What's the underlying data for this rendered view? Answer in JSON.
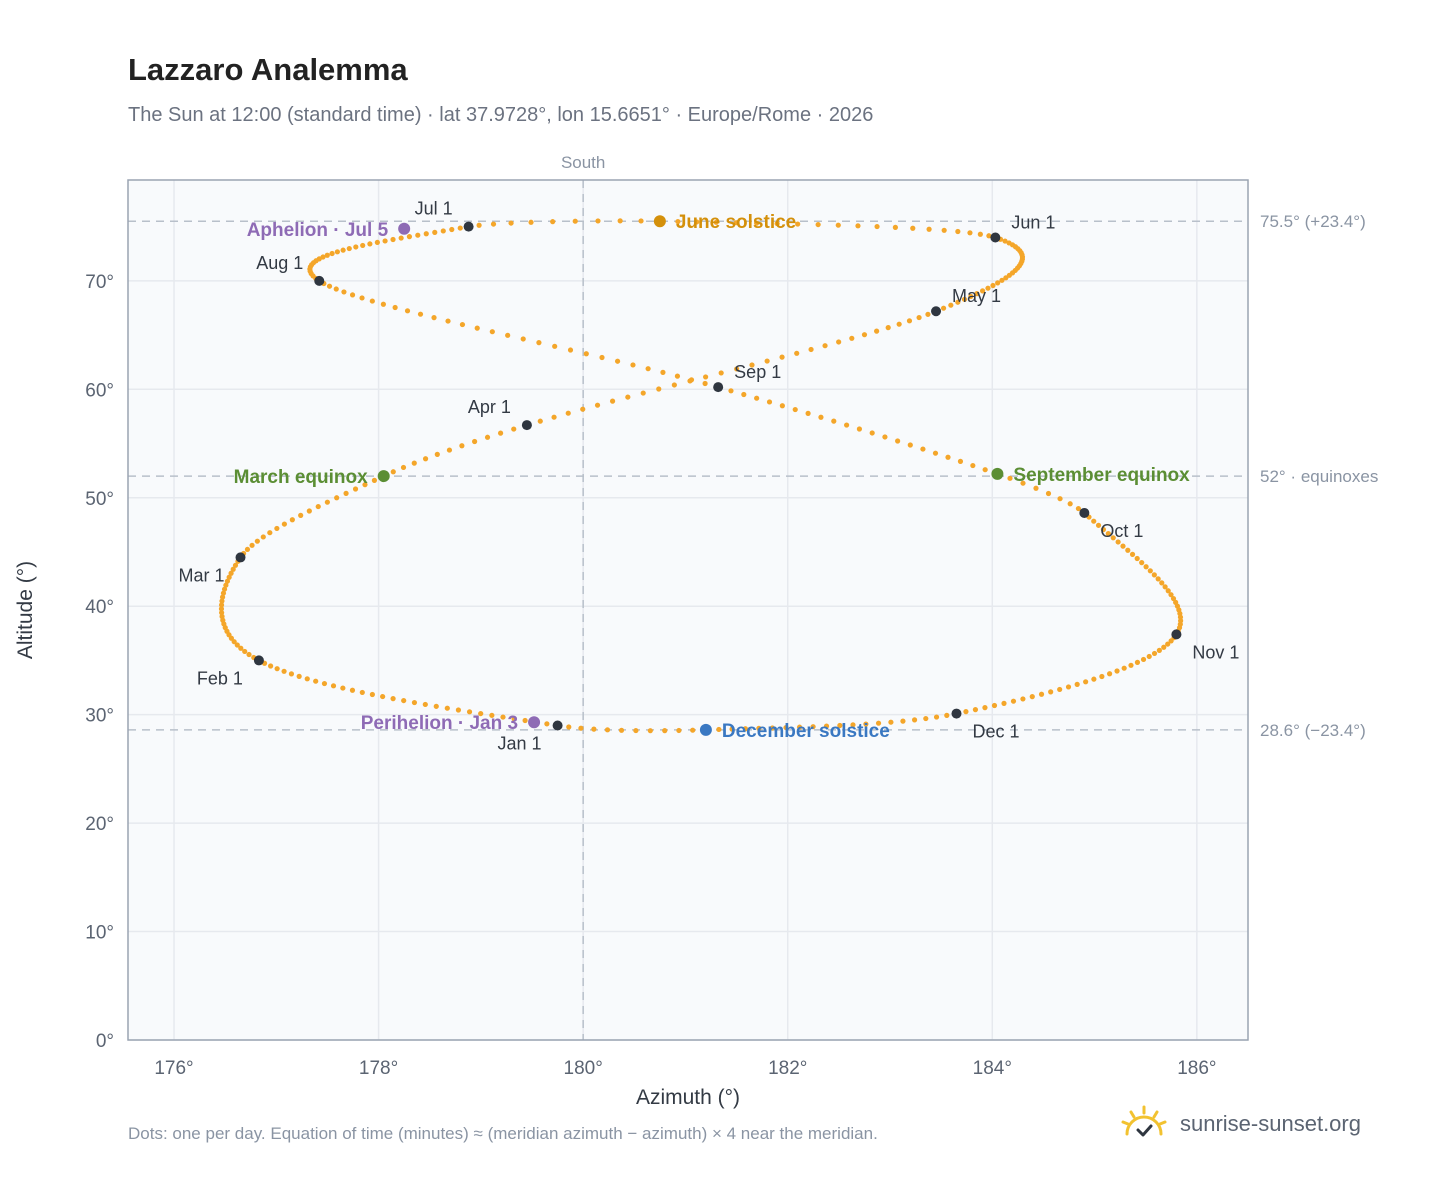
{
  "header": {
    "title": "Lazzaro Analemma",
    "subtitle": "The Sun at 12:00 (standard time) · lat 37.9728°, lon 15.6651° · Europe/Rome · 2026"
  },
  "footer": {
    "note": "Dots: one per day. Equation of time (minutes) ≈ (meridian azimuth − azimuth) × 4 near the meridian.",
    "brand": "sunrise-sunset.org",
    "brand_icon": "sun-check-icon"
  },
  "colors": {
    "curve": "#f4a62a",
    "month_marker": "#2f3640",
    "solstice_june": "#d4900b",
    "equinox": "#5b8e34",
    "solstice_december": "#3a78c2",
    "apsis": "#8e6bb5",
    "grid": "#e6e9ee",
    "plot_bg": "#f8fafc",
    "reference_line": "#b8c0ca",
    "axis_text": "#5b6472"
  },
  "chart_data": {
    "type": "scatter",
    "xlabel": "Azimuth (°)",
    "ylabel": "Altitude (°)",
    "xlim": [
      175.55,
      186.5
    ],
    "ylim": [
      0,
      79.3
    ],
    "xticks": [
      176,
      178,
      180,
      182,
      184,
      186
    ],
    "yticks": [
      0,
      10,
      20,
      30,
      40,
      50,
      60,
      70
    ],
    "x_tick_suffix": "°",
    "y_tick_suffix": "°",
    "grid": true,
    "meridian": {
      "x": 180,
      "label": "South"
    },
    "reference_lines": [
      {
        "y": 75.5,
        "label": "75.5° (+23.4°)"
      },
      {
        "y": 52,
        "label": "52° · equinoxes"
      },
      {
        "y": 28.6,
        "label": "28.6° (−23.4°)"
      }
    ],
    "series": [
      {
        "name": "analemma",
        "points_per": "day",
        "anchors": [
          {
            "day": 0,
            "x": 179.75,
            "y": 29.0
          },
          {
            "day": 31,
            "x": 176.83,
            "y": 35.0
          },
          {
            "day": 59,
            "x": 176.65,
            "y": 44.5
          },
          {
            "day": 78,
            "x": 178.05,
            "y": 52.0
          },
          {
            "day": 90,
            "x": 179.45,
            "y": 56.7
          },
          {
            "day": 120,
            "x": 183.45,
            "y": 67.2
          },
          {
            "day": 151,
            "x": 184.03,
            "y": 74.0
          },
          {
            "day": 171,
            "x": 180.75,
            "y": 75.5
          },
          {
            "day": 181,
            "x": 178.88,
            "y": 75.0
          },
          {
            "day": 212,
            "x": 177.42,
            "y": 70.0
          },
          {
            "day": 243,
            "x": 181.32,
            "y": 60.2
          },
          {
            "day": 265,
            "x": 184.05,
            "y": 52.2
          },
          {
            "day": 273,
            "x": 184.9,
            "y": 48.6
          },
          {
            "day": 304,
            "x": 185.8,
            "y": 37.4
          },
          {
            "day": 334,
            "x": 183.65,
            "y": 30.1
          },
          {
            "day": 354,
            "x": 181.2,
            "y": 28.6
          },
          {
            "day": 365,
            "x": 179.75,
            "y": 29.0
          }
        ]
      }
    ],
    "markers": [
      {
        "label": "Jan 1",
        "x": 179.75,
        "y": 29.0,
        "kind": "month",
        "label_pos": "bl"
      },
      {
        "label": "Feb 1",
        "x": 176.83,
        "y": 35.0,
        "kind": "month",
        "label_pos": "bl"
      },
      {
        "label": "Mar 1",
        "x": 176.65,
        "y": 44.5,
        "kind": "month",
        "label_pos": "bl"
      },
      {
        "label": "Apr 1",
        "x": 179.45,
        "y": 56.7,
        "kind": "month",
        "label_pos": "tl"
      },
      {
        "label": "May 1",
        "x": 183.45,
        "y": 67.2,
        "kind": "month",
        "label_pos": "tr"
      },
      {
        "label": "Jun 1",
        "x": 184.03,
        "y": 74.0,
        "kind": "month",
        "label_pos": "tr"
      },
      {
        "label": "Jul 1",
        "x": 178.88,
        "y": 75.0,
        "kind": "month",
        "label_pos": "tl"
      },
      {
        "label": "Aug 1",
        "x": 177.42,
        "y": 70.0,
        "kind": "month",
        "label_pos": "tl"
      },
      {
        "label": "Sep 1",
        "x": 181.32,
        "y": 60.2,
        "kind": "month",
        "label_pos": "tr"
      },
      {
        "label": "Oct 1",
        "x": 184.9,
        "y": 48.6,
        "kind": "month",
        "label_pos": "br"
      },
      {
        "label": "Nov 1",
        "x": 185.8,
        "y": 37.4,
        "kind": "month",
        "label_pos": "br"
      },
      {
        "label": "Dec 1",
        "x": 183.65,
        "y": 30.1,
        "kind": "month",
        "label_pos": "br"
      },
      {
        "label": "June solstice",
        "x": 180.75,
        "y": 75.5,
        "kind": "solstice_june",
        "label_pos": "r"
      },
      {
        "label": "March equinox",
        "x": 178.05,
        "y": 52.0,
        "kind": "equinox",
        "label_pos": "l"
      },
      {
        "label": "September equinox",
        "x": 184.05,
        "y": 52.2,
        "kind": "equinox",
        "label_pos": "r"
      },
      {
        "label": "December solstice",
        "x": 181.2,
        "y": 28.6,
        "kind": "solstice_december",
        "label_pos": "r"
      },
      {
        "label": "Aphelion · Jul 5",
        "x": 178.25,
        "y": 74.8,
        "kind": "apsis",
        "label_pos": "l"
      },
      {
        "label": "Perihelion · Jan 3",
        "x": 179.52,
        "y": 29.3,
        "kind": "apsis",
        "label_pos": "l"
      }
    ]
  }
}
